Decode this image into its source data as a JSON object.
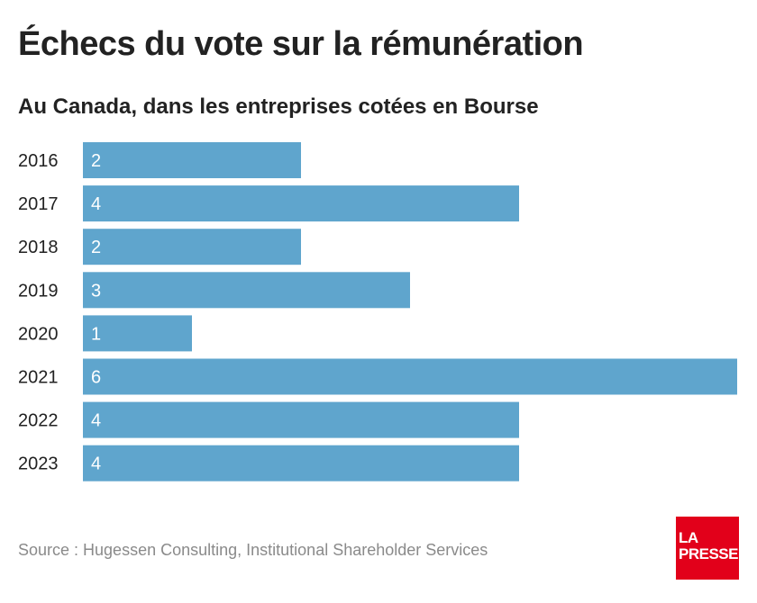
{
  "chart_data": {
    "type": "bar",
    "orientation": "horizontal",
    "title": "Échecs du vote sur la rémunération",
    "subtitle": "Au Canada, dans les entreprises cotées en Bourse",
    "categories": [
      "2016",
      "2017",
      "2018",
      "2019",
      "2020",
      "2021",
      "2022",
      "2023"
    ],
    "values": [
      2,
      4,
      2,
      3,
      1,
      6,
      4,
      4
    ],
    "xlim": [
      0,
      6
    ],
    "grid": false,
    "bar_color": "#5fa5cd",
    "source": "Source : Hugessen Consulting, Institutional Shareholder Services"
  },
  "logo": {
    "line1": "LA",
    "line2": "PRESSE",
    "color": "#e2001a"
  }
}
